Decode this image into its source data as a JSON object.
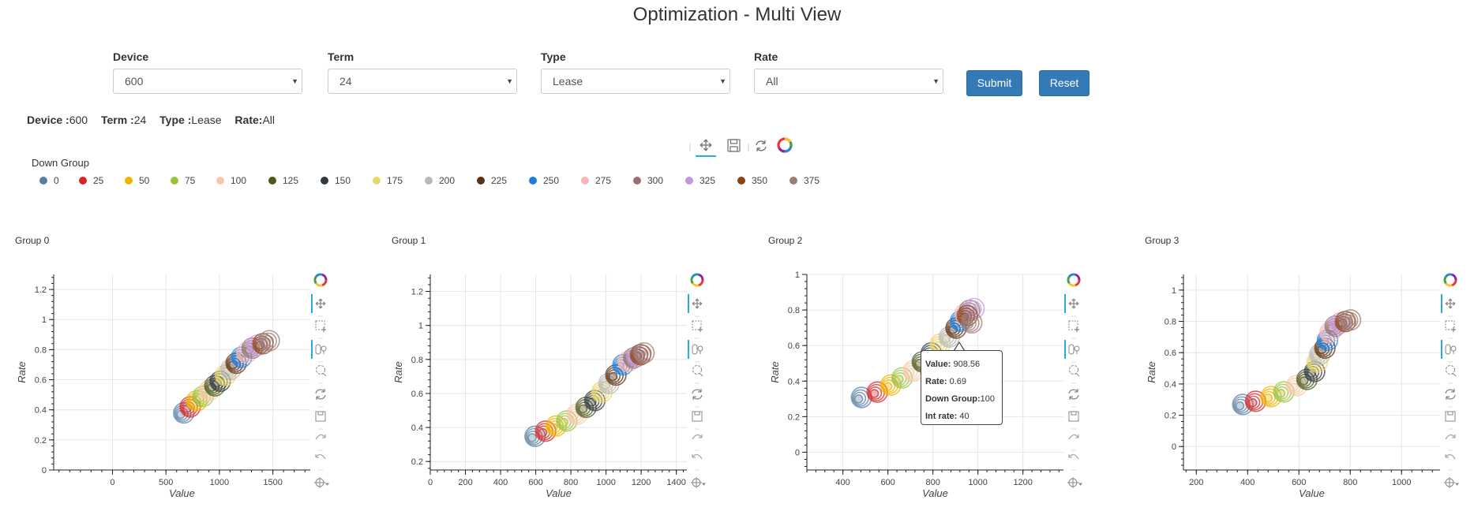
{
  "page_title": "Optimization - Multi View",
  "filters": [
    {
      "label": "Device",
      "value": "600"
    },
    {
      "label": "Term",
      "value": "24"
    },
    {
      "label": "Type",
      "value": "Lease"
    },
    {
      "label": "Rate",
      "value": "All"
    }
  ],
  "buttons": {
    "submit": "Submit",
    "reset": "Reset"
  },
  "summary": {
    "device_label": "Device :",
    "device_value": "600",
    "term_label": "Term :",
    "term_value": "24",
    "type_label": "Type :",
    "type_value": "Lease",
    "rate_label": "Rate:",
    "rate_value": "All"
  },
  "legend": {
    "title": "Down  Group",
    "items": [
      {
        "label": "0",
        "color": "#5b7fa3"
      },
      {
        "label": "25",
        "color": "#d62728"
      },
      {
        "label": "50",
        "color": "#f0b400"
      },
      {
        "label": "75",
        "color": "#9bc23f"
      },
      {
        "label": "100",
        "color": "#f7c7a8"
      },
      {
        "label": "125",
        "color": "#4a5a1e"
      },
      {
        "label": "150",
        "color": "#333a40"
      },
      {
        "label": "175",
        "color": "#e8d66a"
      },
      {
        "label": "200",
        "color": "#b8b8b8"
      },
      {
        "label": "225",
        "color": "#5c3112"
      },
      {
        "label": "250",
        "color": "#1f7de0"
      },
      {
        "label": "275",
        "color": "#f4b6b6"
      },
      {
        "label": "300",
        "color": "#957075"
      },
      {
        "label": "325",
        "color": "#c397de"
      },
      {
        "label": "350",
        "color": "#8b4513"
      },
      {
        "label": "375",
        "color": "#9c7a76"
      }
    ]
  },
  "tools": [
    "pan-icon",
    "box-zoom-icon",
    "wheel-zoom-icon",
    "lasso-icon",
    "reset-icon",
    "save-icon",
    "undo-icon",
    "redo-icon",
    "hover-icon"
  ],
  "tooltip": {
    "value_label": "Value:",
    "value": "908.56",
    "rate_label": "Rate:",
    "rate": "0.69",
    "group_label": "Down Group:",
    "group": "100",
    "int_label": "Int rate:",
    "int_rate": "40"
  },
  "chart_data": [
    {
      "type": "scatter",
      "title": "Group 0",
      "xlabel": "Value",
      "ylabel": "Rate",
      "xlim": [
        -550,
        1850
      ],
      "ylim": [
        0,
        1.3
      ],
      "xticks": [
        0,
        500,
        1000,
        1500
      ],
      "yticks": [
        0,
        0.2,
        0.4,
        0.6,
        0.8,
        1,
        1.2
      ],
      "x": [
        640,
        700,
        760,
        820,
        880,
        930,
        980,
        1030,
        1080,
        1130,
        1180,
        1230,
        1280,
        1330,
        1380,
        1440
      ],
      "y": [
        0.37,
        0.41,
        0.45,
        0.48,
        0.52,
        0.55,
        0.58,
        0.62,
        0.66,
        0.7,
        0.74,
        0.77,
        0.8,
        0.82,
        0.83,
        0.85
      ]
    },
    {
      "type": "scatter",
      "title": "Group 1",
      "xlabel": "Value",
      "ylabel": "Rate",
      "xlim": [
        0,
        1460
      ],
      "ylim": [
        0.15,
        1.3
      ],
      "xticks": [
        0,
        200,
        400,
        600,
        800,
        1000,
        1200,
        1400
      ],
      "yticks": [
        0.2,
        0.4,
        0.6,
        0.8,
        1,
        1.2
      ],
      "x": [
        580,
        640,
        700,
        760,
        820,
        870,
        920,
        960,
        1000,
        1040,
        1080,
        1110,
        1140,
        1160,
        1180,
        1200
      ],
      "y": [
        0.34,
        0.37,
        0.4,
        0.43,
        0.47,
        0.51,
        0.55,
        0.6,
        0.65,
        0.7,
        0.76,
        0.78,
        0.8,
        0.81,
        0.82,
        0.83
      ]
    },
    {
      "type": "scatter",
      "title": "Group 2",
      "xlabel": "Value",
      "ylabel": "Rate",
      "xlim": [
        240,
        1380
      ],
      "ylim": [
        -0.1,
        1.0
      ],
      "xticks": [
        400,
        600,
        800,
        1000,
        1200
      ],
      "yticks": [
        0,
        0.2,
        0.4,
        0.6,
        0.8,
        1
      ],
      "x": [
        470,
        540,
        600,
        650,
        700,
        740,
        780,
        820,
        860,
        890,
        910,
        930,
        950,
        970,
        940,
        960
      ],
      "y": [
        0.3,
        0.33,
        0.37,
        0.41,
        0.45,
        0.5,
        0.55,
        0.6,
        0.64,
        0.69,
        0.73,
        0.77,
        0.79,
        0.8,
        0.76,
        0.72
      ]
    },
    {
      "type": "scatter",
      "title": "Group 3",
      "xlabel": "Value",
      "ylabel": "Rate",
      "xlim": [
        150,
        1150
      ],
      "ylim": [
        -0.15,
        1.1
      ],
      "xticks": [
        200,
        400,
        600,
        800,
        1000
      ],
      "yticks": [
        0,
        0.2,
        0.4,
        0.6,
        0.8,
        1
      ],
      "x": [
        370,
        420,
        480,
        530,
        580,
        620,
        650,
        660,
        670,
        690,
        700,
        710,
        730,
        750,
        770,
        790
      ],
      "y": [
        0.26,
        0.28,
        0.31,
        0.34,
        0.38,
        0.42,
        0.47,
        0.53,
        0.58,
        0.62,
        0.67,
        0.72,
        0.76,
        0.78,
        0.79,
        0.8
      ]
    }
  ]
}
